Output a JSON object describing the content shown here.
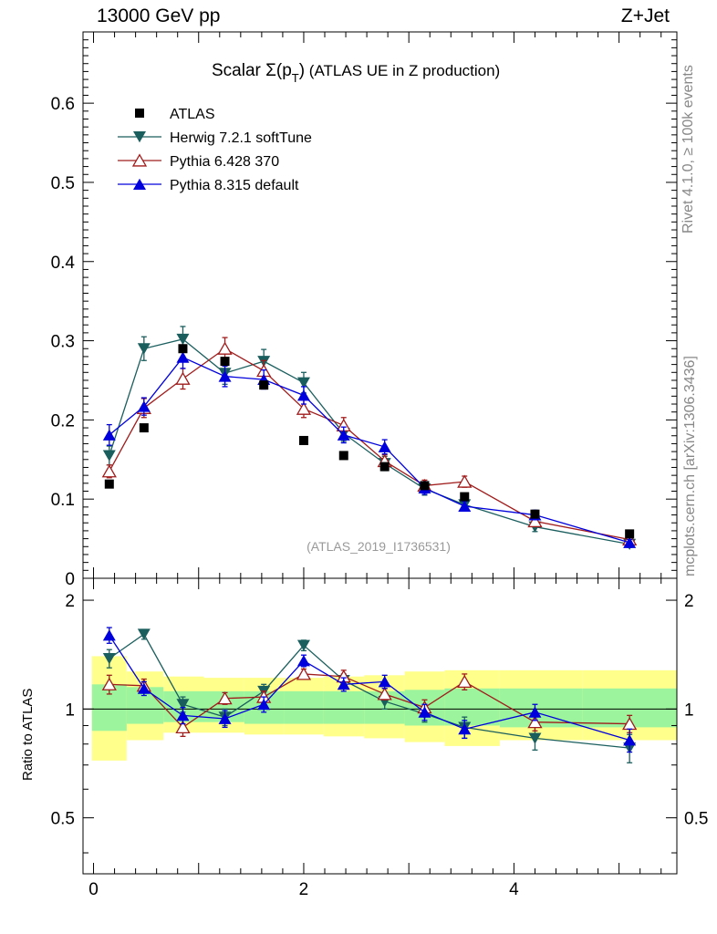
{
  "header": {
    "beam": "13000 GeV pp",
    "process": "Z+Jet"
  },
  "side_labels": {
    "rivet": "Rivet 4.1.0, ≥ 100k events",
    "mcplots": "mcplots.cern.ch [arXiv:1306.3436]"
  },
  "chart_data": {
    "type": "scatter",
    "title_main": "Scalar Σ(p",
    "title_sub": "T",
    "title_close": ")",
    "title_rest": " (ATLAS UE in Z production)",
    "watermark": "(ATLAS_2019_I1736531)",
    "ylabel_ratio": "Ratio to ATLAS",
    "xlim": [
      -0.1,
      5.55
    ],
    "ylim": [
      0,
      0.69
    ],
    "ratio_ylim": [
      0.35,
      2.3
    ],
    "x_ticks": [
      "0",
      "2",
      "4"
    ],
    "x_tick_values": [
      0,
      2,
      4
    ],
    "y_ticks": [
      "0",
      "0.1",
      "0.2",
      "0.3",
      "0.4",
      "0.5",
      "0.6"
    ],
    "y_tick_values": [
      0,
      0.1,
      0.2,
      0.3,
      0.4,
      0.5,
      0.6
    ],
    "ratio_ticks": [
      "0.5",
      "1",
      "2"
    ],
    "ratio_tick_values": [
      0.5,
      1,
      2
    ],
    "x": [
      0.15,
      0.48,
      0.85,
      1.25,
      1.62,
      2.0,
      2.38,
      2.77,
      3.15,
      3.53,
      4.2,
      5.1
    ],
    "data": {
      "name": "ATLAS",
      "values": [
        0.119,
        0.19,
        0.29,
        0.274,
        0.244,
        0.174,
        0.155,
        0.141,
        0.117,
        0.103,
        0.081,
        0.056
      ],
      "band_inner": [
        [
          0.87,
          1.17
        ],
        [
          0.91,
          1.15
        ],
        [
          0.92,
          1.12
        ],
        [
          0.92,
          1.12
        ],
        [
          0.91,
          1.12
        ],
        [
          0.91,
          1.12
        ],
        [
          0.91,
          1.12
        ],
        [
          0.91,
          1.12
        ],
        [
          0.9,
          1.13
        ],
        [
          0.9,
          1.14
        ],
        [
          0.89,
          1.14
        ],
        [
          0.89,
          1.14
        ]
      ],
      "band_outer": [
        [
          0.72,
          1.4
        ],
        [
          0.82,
          1.27
        ],
        [
          0.86,
          1.23
        ],
        [
          0.86,
          1.22
        ],
        [
          0.85,
          1.22
        ],
        [
          0.85,
          1.22
        ],
        [
          0.84,
          1.23
        ],
        [
          0.83,
          1.24
        ],
        [
          0.81,
          1.27
        ],
        [
          0.79,
          1.28
        ],
        [
          0.82,
          1.28
        ],
        [
          0.82,
          1.28
        ]
      ]
    },
    "series": [
      {
        "name": "Herwig 7.2.1 softTune",
        "color": "#1b5e5e",
        "marker": "triangle-down-filled",
        "values": [
          0.155,
          0.29,
          0.302,
          0.259,
          0.274,
          0.247,
          0.183,
          0.145,
          0.113,
          0.093,
          0.065,
          0.043
        ],
        "errors": [
          0.012,
          0.015,
          0.016,
          0.014,
          0.015,
          0.013,
          0.01,
          0.009,
          0.008,
          0.007,
          0.006,
          0.004
        ],
        "ratio": [
          1.38,
          1.61,
          1.03,
          0.95,
          1.12,
          1.5,
          1.2,
          1.05,
          0.97,
          0.89,
          0.83,
          0.78
        ],
        "ratio_errors": [
          0.08,
          0.05,
          0.05,
          0.05,
          0.05,
          0.05,
          0.05,
          0.05,
          0.05,
          0.06,
          0.06,
          0.07
        ]
      },
      {
        "name": "Pythia 6.428 370",
        "color": "#a01c1c",
        "marker": "triangle-up-open",
        "values": [
          0.135,
          0.215,
          0.252,
          0.29,
          0.262,
          0.214,
          0.193,
          0.148,
          0.117,
          0.122,
          0.072,
          0.049
        ],
        "errors": [
          0.008,
          0.012,
          0.013,
          0.014,
          0.013,
          0.011,
          0.01,
          0.008,
          0.007,
          0.007,
          0.004,
          0.003
        ],
        "ratio": [
          1.17,
          1.16,
          0.89,
          1.07,
          1.08,
          1.25,
          1.23,
          1.1,
          1.01,
          1.19,
          0.92,
          0.91
        ],
        "ratio_errors": [
          0.07,
          0.05,
          0.05,
          0.04,
          0.04,
          0.04,
          0.05,
          0.04,
          0.05,
          0.06,
          0.05,
          0.05
        ]
      },
      {
        "name": "Pythia 8.315 default",
        "color": "#0000dd",
        "marker": "triangle-up-filled",
        "values": [
          0.181,
          0.217,
          0.279,
          0.255,
          0.251,
          0.231,
          0.181,
          0.166,
          0.114,
          0.091,
          0.08,
          0.045
        ],
        "errors": [
          0.013,
          0.011,
          0.014,
          0.013,
          0.012,
          0.011,
          0.01,
          0.009,
          0.008,
          0.006,
          0.006,
          0.004
        ],
        "ratio": [
          1.6,
          1.14,
          0.96,
          0.94,
          1.03,
          1.36,
          1.17,
          1.19,
          0.98,
          0.88,
          0.98,
          0.82
        ],
        "ratio_errors": [
          0.08,
          0.05,
          0.05,
          0.05,
          0.05,
          0.05,
          0.05,
          0.05,
          0.05,
          0.05,
          0.05,
          0.06
        ]
      }
    ]
  }
}
